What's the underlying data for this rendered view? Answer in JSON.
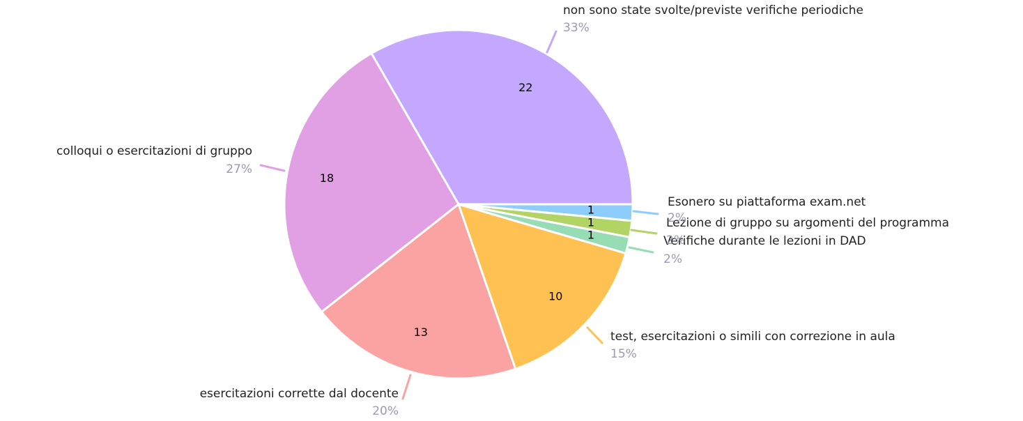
{
  "chart_data": {
    "type": "pie",
    "categories": [
      "non sono state svolte/previste verifiche periodiche",
      "colloqui o esercitazioni di gruppo",
      "esercitazioni corrette dal docente",
      "test, esercitazioni o simili con correzione in aula",
      "Verifiche durante le lezioni in DAD",
      "Lezione di gruppo su argomenti del programma",
      "Esonero su piattaforma exam.net"
    ],
    "values": [
      22,
      18,
      13,
      10,
      1,
      1,
      1
    ],
    "percent_labels": [
      "33%",
      "27%",
      "20%",
      "15%",
      "2%",
      "2%",
      "2%"
    ],
    "colors": [
      "#c4a8ff",
      "#e2a0e4",
      "#fba3a3",
      "#ffc252",
      "#96dcb4",
      "#b2d465",
      "#8ccdfc"
    ]
  }
}
